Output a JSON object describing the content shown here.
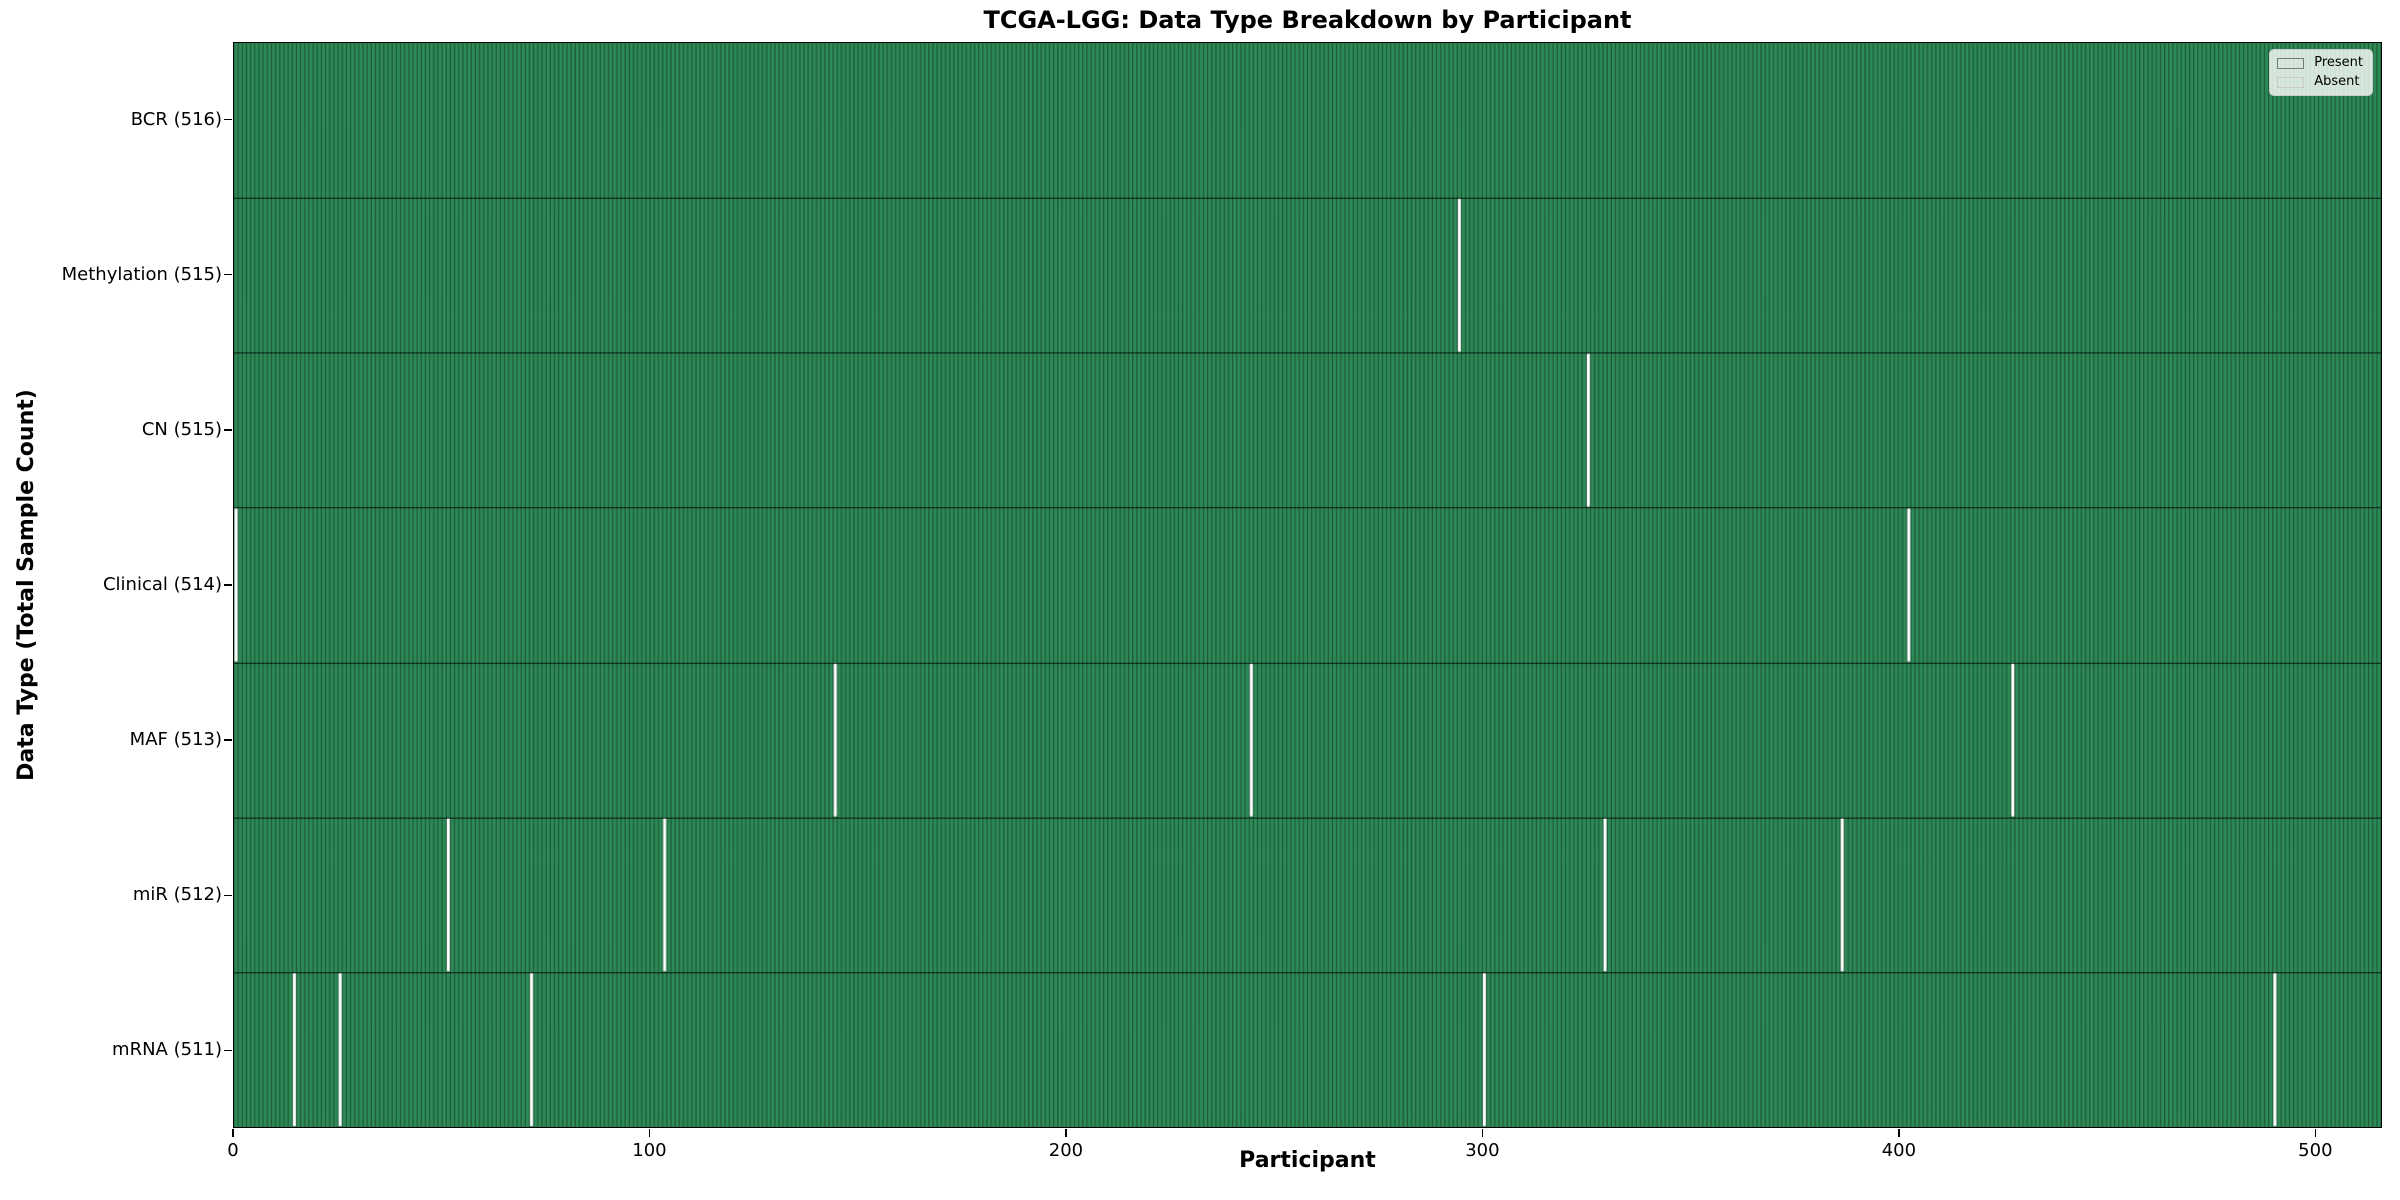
{
  "chart_data": {
    "type": "heatmap",
    "title": "TCGA-LGG: Data Type Breakdown by Participant",
    "xlabel": "Participant",
    "ylabel": "Data Type (Total Sample Count)",
    "n_participants": 516,
    "xlim": [
      0,
      516
    ],
    "x_ticks": [
      0,
      100,
      200,
      300,
      400,
      500
    ],
    "grid": false,
    "legend_position": "upper right",
    "legend": [
      {
        "label": "Present",
        "color": "#2e8b57"
      },
      {
        "label": "Absent",
        "color": "#ffffff"
      }
    ],
    "rows": [
      {
        "label": "BCR (516)",
        "data_type": "BCR",
        "present_count": 516,
        "absent_participants": []
      },
      {
        "label": "Methylation (515)",
        "data_type": "Methylation",
        "present_count": 515,
        "absent_participants": [
          294
        ]
      },
      {
        "label": "CN (515)",
        "data_type": "CN",
        "present_count": 515,
        "absent_participants": [
          325
        ]
      },
      {
        "label": "Clinical (514)",
        "data_type": "Clinical",
        "present_count": 514,
        "absent_participants": [
          0,
          402
        ]
      },
      {
        "label": "MAF (513)",
        "data_type": "MAF",
        "present_count": 513,
        "absent_participants": [
          144,
          244,
          427
        ]
      },
      {
        "label": "miR (512)",
        "data_type": "miR",
        "present_count": 512,
        "absent_participants": [
          51,
          103,
          329,
          386
        ]
      },
      {
        "label": "mRNA (511)",
        "data_type": "mRNA",
        "present_count": 511,
        "absent_participants": [
          14,
          25,
          71,
          300,
          490
        ]
      }
    ],
    "colors": {
      "present": "#2e8b57",
      "absent": "#ffffff",
      "bar_edge": "rgba(0,0,0,0.5)",
      "row_divider": "rgba(0,0,0,0.8)",
      "spine": "#000000",
      "text": "#000000"
    }
  }
}
